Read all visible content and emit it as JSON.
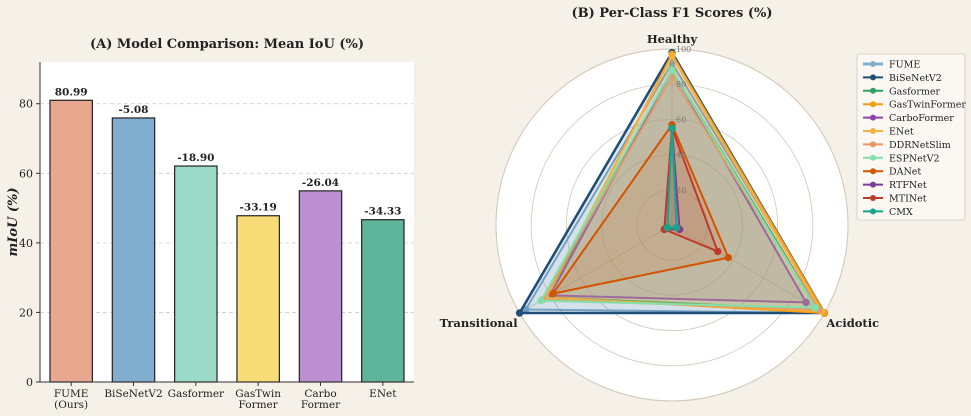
{
  "chart_data": [
    {
      "type": "bar",
      "title": "(A) Model Comparison: Mean IoU (%)",
      "xlabel": "",
      "ylabel": "mIoU (%)",
      "ylim": [
        0,
        92
      ],
      "yticks": [
        "0",
        "20",
        "40",
        "60",
        "80"
      ],
      "grid": "horizontal dashed",
      "categories": [
        [
          "FUME",
          "(Ours)"
        ],
        [
          "BiSeNetV2"
        ],
        [
          "Gasformer"
        ],
        [
          "GasTwin",
          "Former"
        ],
        [
          "Carbo",
          "Former"
        ],
        [
          "ENet"
        ]
      ],
      "values": [
        80.99,
        75.91,
        62.09,
        47.8,
        54.95,
        46.66
      ],
      "value_labels": [
        "80.99",
        "-5.08",
        "-18.90",
        "-33.19",
        "-26.04",
        "-34.33"
      ],
      "colors": [
        "#e8a890",
        "#7faecf",
        "#9bdbc8",
        "#f8dc78",
        "#bb8fd0",
        "#5fb59c"
      ]
    },
    {
      "type": "radar",
      "title": "(B) Per-Class F1 Scores (%)",
      "axes": [
        "Healthy",
        "Acidotic",
        "Transitional"
      ],
      "r_range": [
        0,
        100
      ],
      "r_ticks": [
        "20",
        "40",
        "60",
        "80",
        "100"
      ],
      "legend_placement": "right",
      "series": [
        {
          "name": "FUME",
          "color": "#7faecf",
          "values": [
            92,
            100,
            96
          ]
        },
        {
          "name": "BiSeNetV2",
          "color": "#1f4e79",
          "values": [
            98,
            100,
            100
          ]
        },
        {
          "name": "Gasformer",
          "color": "#2ca25f",
          "values": [
            88,
            96,
            82
          ]
        },
        {
          "name": "GasTwinFormer",
          "color": "#f39c12",
          "values": [
            97,
            100,
            82
          ]
        },
        {
          "name": "CarboFormer",
          "color": "#8e44ad",
          "values": [
            88,
            88,
            80
          ]
        },
        {
          "name": "ENet",
          "color": "#f5b041",
          "values": [
            96,
            98,
            83
          ]
        },
        {
          "name": "DDRNetSlim",
          "color": "#e59866",
          "values": [
            84,
            96,
            85
          ]
        },
        {
          "name": "ESPNetV2",
          "color": "#82e0aa",
          "values": [
            88,
            94,
            86
          ]
        },
        {
          "name": "DANet",
          "color": "#d35400",
          "values": [
            57,
            37,
            78
          ]
        },
        {
          "name": "RTFNet",
          "color": "#7d3c98",
          "values": [
            55,
            5,
            5
          ]
        },
        {
          "name": "MTINet",
          "color": "#c0392b",
          "values": [
            55,
            30,
            5
          ]
        },
        {
          "name": "CMX",
          "color": "#17a589",
          "values": [
            55,
            3,
            3
          ]
        }
      ]
    }
  ]
}
